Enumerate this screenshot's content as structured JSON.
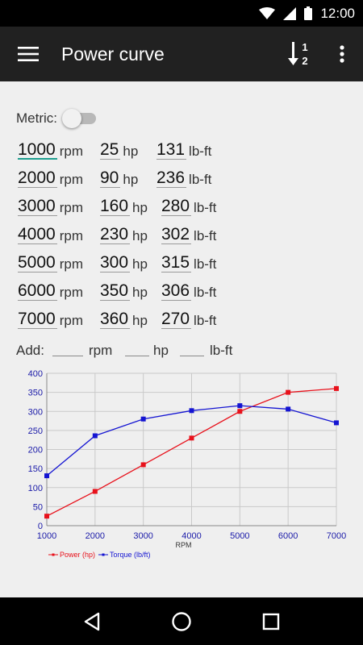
{
  "status": {
    "time": "12:00"
  },
  "appbar": {
    "title": "Power curve"
  },
  "metric": {
    "label": "Metric:",
    "enabled": false
  },
  "rows": [
    {
      "rpm": "1000",
      "hp": "25",
      "torque": "131"
    },
    {
      "rpm": "2000",
      "hp": "90",
      "torque": "236"
    },
    {
      "rpm": "3000",
      "hp": "160",
      "torque": "280"
    },
    {
      "rpm": "4000",
      "hp": "230",
      "torque": "302"
    },
    {
      "rpm": "5000",
      "hp": "300",
      "torque": "315"
    },
    {
      "rpm": "6000",
      "hp": "350",
      "torque": "306"
    },
    {
      "rpm": "7000",
      "hp": "360",
      "torque": "270"
    }
  ],
  "units": {
    "rpm": "rpm",
    "hp": "hp",
    "torque": "lb-ft"
  },
  "add": {
    "label": "Add:",
    "rpm_value": "",
    "hp_value": "",
    "torque_value": ""
  },
  "chart_data": {
    "type": "line",
    "x": [
      1000,
      2000,
      3000,
      4000,
      5000,
      6000,
      7000
    ],
    "series": [
      {
        "name": "Power (hp)",
        "color": "#e8111b",
        "values": [
          25,
          90,
          160,
          230,
          300,
          350,
          360
        ]
      },
      {
        "name": "Torque (lb/ft)",
        "color": "#1414d2",
        "values": [
          131,
          236,
          280,
          302,
          315,
          306,
          270
        ]
      }
    ],
    "xlabel": "RPM",
    "ylabel": "",
    "xlim": [
      1000,
      7000
    ],
    "ylim": [
      0,
      400
    ],
    "xticks": [
      "1000",
      "2000",
      "3000",
      "4000",
      "5000",
      "6000",
      "7000"
    ],
    "yticks": [
      "0",
      "50",
      "100",
      "150",
      "200",
      "250",
      "300",
      "350",
      "400"
    ],
    "grid": true,
    "legend": "bottom-left"
  }
}
